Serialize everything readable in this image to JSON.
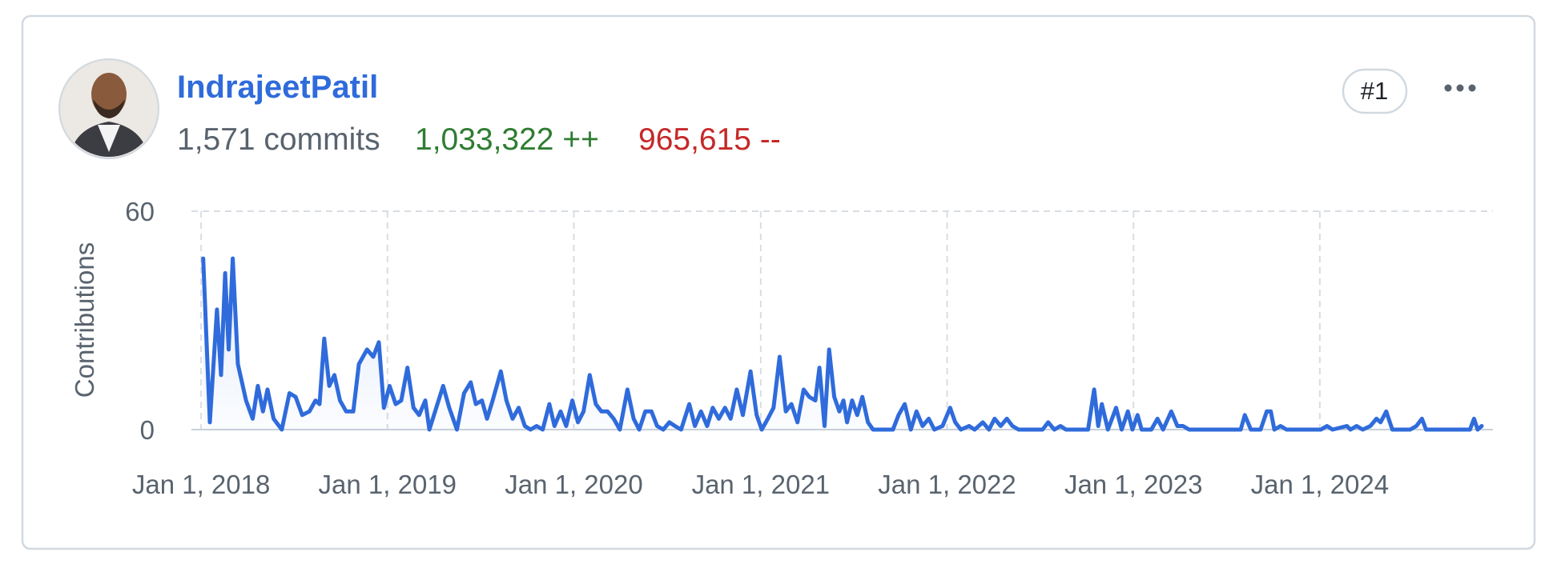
{
  "header": {
    "username": "IndrajeetPatil",
    "commits": "1,571 commits",
    "additions": "1,033,322 ++",
    "deletions": "965,615 --",
    "rank": "#1"
  },
  "chart_data": {
    "type": "line",
    "y_label": "Contributions",
    "x": [
      "2018-01-05",
      "2018-01-18",
      "2018-02-01",
      "2018-02-09",
      "2018-02-17",
      "2018-02-24",
      "2018-03-04",
      "2018-03-14",
      "2018-03-30",
      "2018-04-12",
      "2018-04-22",
      "2018-05-02",
      "2018-05-11",
      "2018-05-23",
      "2018-06-08",
      "2018-06-23",
      "2018-07-05",
      "2018-07-18",
      "2018-08-01",
      "2018-08-13",
      "2018-08-21",
      "2018-08-30",
      "2018-09-09",
      "2018-09-19",
      "2018-09-30",
      "2018-10-12",
      "2018-10-26",
      "2018-11-06",
      "2018-11-22",
      "2018-12-04",
      "2018-12-15",
      "2018-12-25",
      "2019-01-05",
      "2019-01-17",
      "2019-01-28",
      "2019-02-09",
      "2019-02-21",
      "2019-03-04",
      "2019-03-16",
      "2019-03-24",
      "2019-04-20",
      "2019-05-02",
      "2019-05-17",
      "2019-05-31",
      "2019-06-13",
      "2019-06-23",
      "2019-07-05",
      "2019-07-15",
      "2019-07-26",
      "2019-08-11",
      "2019-08-22",
      "2019-09-03",
      "2019-09-15",
      "2019-09-27",
      "2019-10-08",
      "2019-10-20",
      "2019-11-01",
      "2019-11-14",
      "2019-11-24",
      "2019-12-06",
      "2019-12-17",
      "2019-12-29",
      "2020-01-09",
      "2020-01-20",
      "2020-02-01",
      "2020-02-13",
      "2020-02-24",
      "2020-03-07",
      "2020-03-19",
      "2020-03-31",
      "2020-04-15",
      "2020-04-27",
      "2020-05-08",
      "2020-05-20",
      "2020-06-01",
      "2020-06-12",
      "2020-06-24",
      "2020-07-06",
      "2020-07-17",
      "2020-07-29",
      "2020-08-14",
      "2020-08-25",
      "2020-09-06",
      "2020-09-18",
      "2020-09-29",
      "2020-10-11",
      "2020-10-23",
      "2020-11-03",
      "2020-11-15",
      "2020-11-27",
      "2020-12-12",
      "2020-12-24",
      "2021-01-03",
      "2021-01-15",
      "2021-01-26",
      "2021-02-07",
      "2021-02-19",
      "2021-03-02",
      "2021-03-14",
      "2021-03-26",
      "2021-04-06",
      "2021-04-18",
      "2021-04-26",
      "2021-05-06",
      "2021-05-15",
      "2021-05-25",
      "2021-06-04",
      "2021-06-12",
      "2021-06-19",
      "2021-06-29",
      "2021-07-09",
      "2021-07-19",
      "2021-07-30",
      "2021-08-09",
      "2021-09-17",
      "2021-09-28",
      "2021-10-10",
      "2021-10-22",
      "2021-11-02",
      "2021-11-14",
      "2021-11-26",
      "2021-12-07",
      "2021-12-23",
      "2022-01-07",
      "2022-01-17",
      "2022-01-28",
      "2022-02-13",
      "2022-02-24",
      "2022-03-12",
      "2022-03-24",
      "2022-04-04",
      "2022-04-16",
      "2022-04-28",
      "2022-05-09",
      "2022-05-21",
      "2022-07-07",
      "2022-07-18",
      "2022-07-30",
      "2022-08-11",
      "2022-08-22",
      "2022-10-04",
      "2022-10-16",
      "2022-10-24",
      "2022-10-31",
      "2022-11-12",
      "2022-11-28",
      "2022-12-09",
      "2022-12-21",
      "2022-12-30",
      "2023-01-09",
      "2023-01-17",
      "2023-02-05",
      "2023-02-17",
      "2023-02-28",
      "2023-03-16",
      "2023-03-28",
      "2023-04-08",
      "2023-04-20",
      "2023-07-30",
      "2023-08-07",
      "2023-08-19",
      "2023-09-07",
      "2023-09-19",
      "2023-09-27",
      "2023-10-04",
      "2023-10-16",
      "2023-10-28",
      "2024-01-03",
      "2024-01-15",
      "2024-01-26",
      "2024-02-23",
      "2024-03-01",
      "2024-03-13",
      "2024-03-25",
      "2024-04-09",
      "2024-04-21",
      "2024-04-29",
      "2024-05-10",
      "2024-05-22",
      "2024-06-26",
      "2024-07-08",
      "2024-07-19",
      "2024-07-27",
      "2024-10-21",
      "2024-10-29",
      "2024-11-05",
      "2024-11-13"
    ],
    "series": [
      {
        "name": "IndrajeetPatil",
        "color": "#2f6bdb",
        "values": [
          47,
          2,
          33,
          15,
          43,
          22,
          47,
          18,
          8,
          3,
          12,
          5,
          11,
          3,
          0,
          10,
          9,
          4,
          5,
          8,
          7,
          25,
          12,
          15,
          8,
          5,
          5,
          18,
          22,
          20,
          24,
          6,
          12,
          7,
          8,
          17,
          6,
          4,
          8,
          0,
          12,
          6,
          0,
          10,
          13,
          7,
          8,
          3,
          8,
          16,
          8,
          3,
          6,
          1,
          0,
          1,
          0,
          7,
          1,
          5,
          1,
          8,
          2,
          5,
          15,
          7,
          5,
          5,
          3,
          0,
          11,
          3,
          0,
          5,
          5,
          1,
          0,
          2,
          1,
          0,
          7,
          1,
          5,
          1,
          6,
          3,
          6,
          3,
          11,
          4,
          16,
          4,
          0,
          3,
          6,
          20,
          5,
          7,
          2,
          11,
          9,
          8,
          17,
          1,
          22,
          9,
          5,
          8,
          2,
          8,
          4,
          9,
          2,
          0,
          0,
          4,
          7,
          0,
          5,
          1,
          3,
          0,
          1,
          6,
          2,
          0,
          1,
          0,
          2,
          0,
          3,
          1,
          3,
          1,
          0,
          0,
          2,
          0,
          1,
          0,
          0,
          11,
          1,
          7,
          0,
          6,
          0,
          5,
          0,
          4,
          0,
          0,
          3,
          0,
          5,
          1,
          1,
          0,
          0,
          4,
          0,
          0,
          5,
          5,
          0,
          1,
          0,
          0,
          1,
          0,
          1,
          0,
          1,
          0,
          1,
          3,
          2,
          5,
          0,
          0,
          1,
          3,
          0,
          0,
          3,
          0,
          1
        ]
      }
    ],
    "xlim": [
      "2017-12-13",
      "2024-12-05"
    ],
    "xticks": [
      {
        "value": "2018-01-01",
        "label": "Jan 1, 2018"
      },
      {
        "value": "2019-01-01",
        "label": "Jan 1, 2019"
      },
      {
        "value": "2020-01-01",
        "label": "Jan 1, 2020"
      },
      {
        "value": "2021-01-01",
        "label": "Jan 1, 2021"
      },
      {
        "value": "2022-01-01",
        "label": "Jan 1, 2022"
      },
      {
        "value": "2023-01-01",
        "label": "Jan 1, 2023"
      },
      {
        "value": "2024-01-01",
        "label": "Jan 1, 2024"
      }
    ],
    "ylim": [
      0,
      60
    ],
    "yticks": [
      0,
      60
    ],
    "grid": true
  }
}
